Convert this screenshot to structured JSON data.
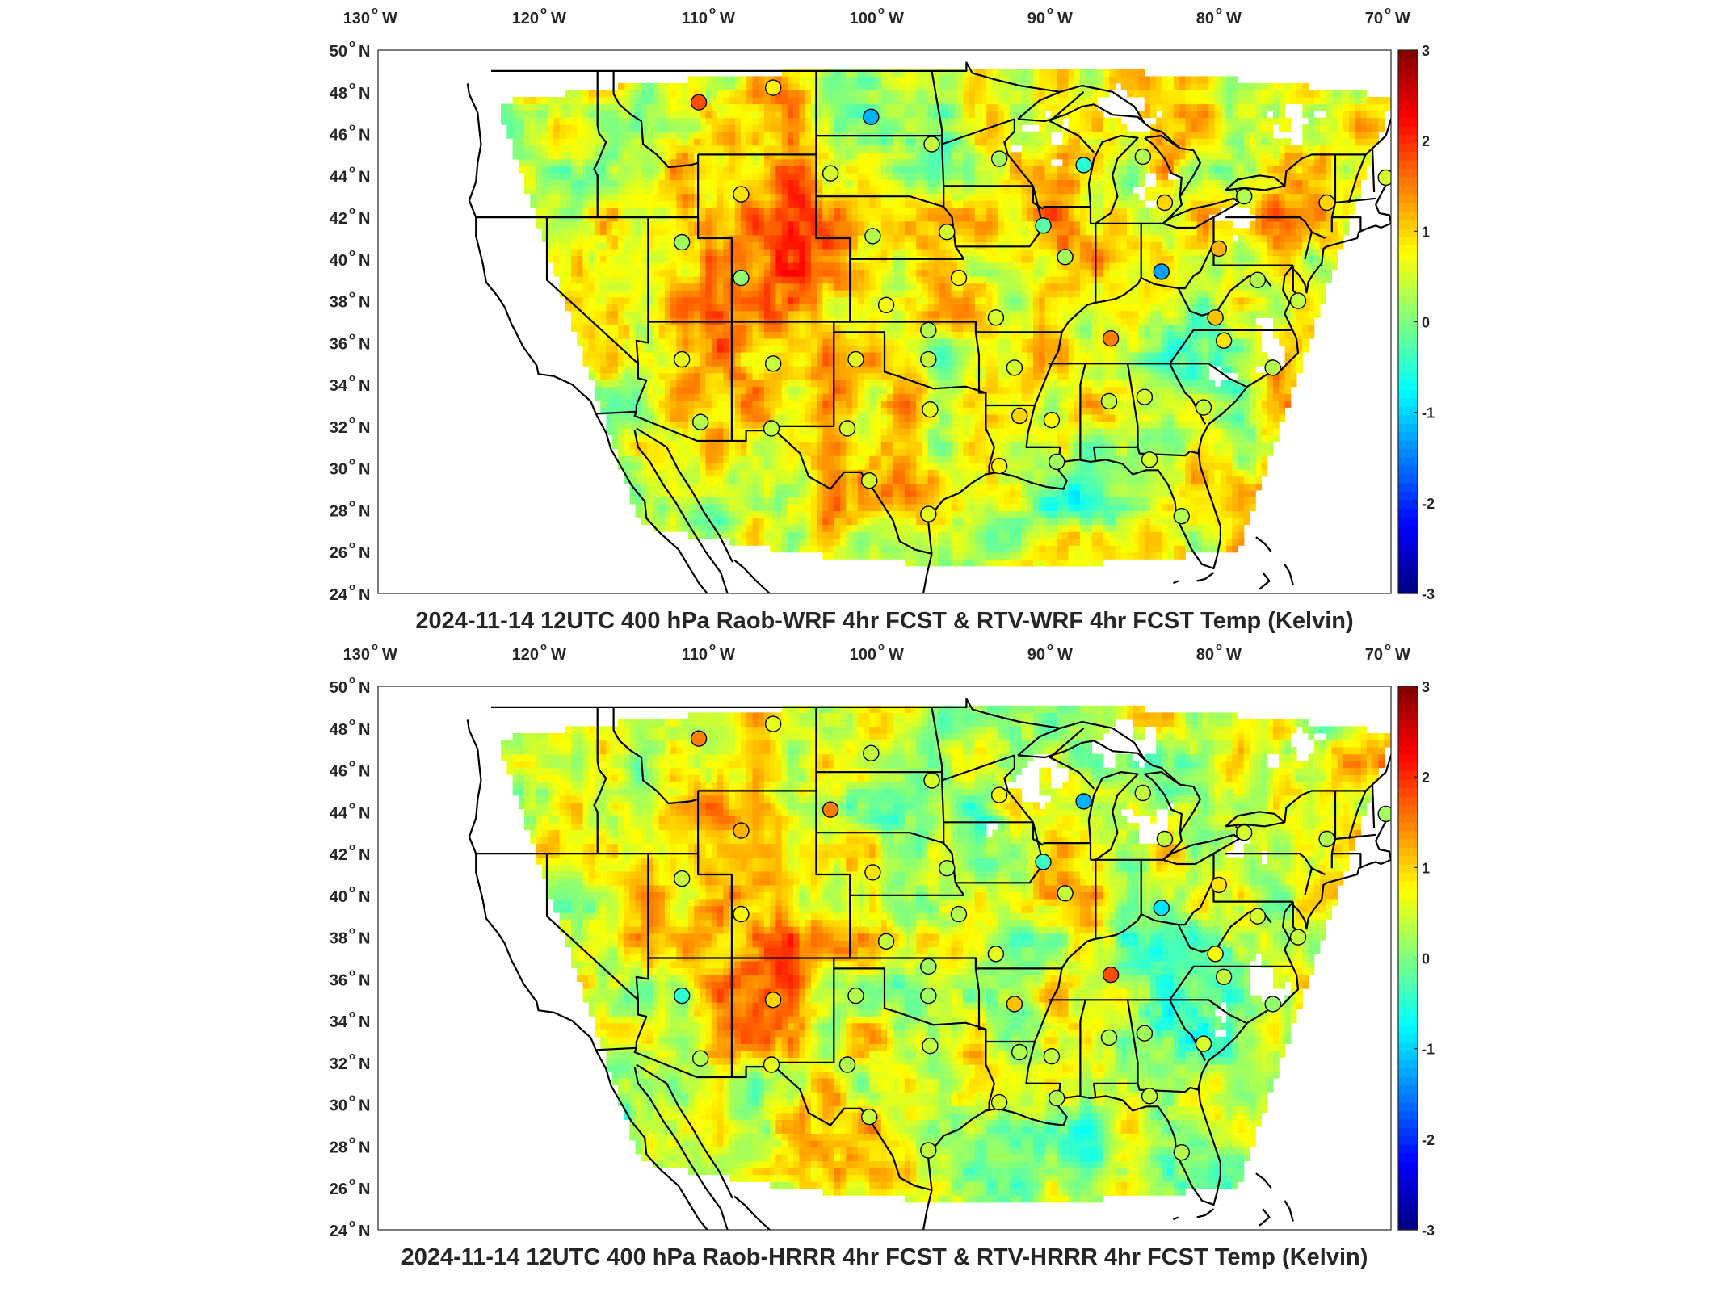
{
  "panels": [
    {
      "id": "wrf",
      "title": "2024-11-14 12UTC 400 hPa Raob-WRF 4hr FCST & RTV-WRF 4hr FCST Temp (Kelvin)",
      "field_bias": 0.65,
      "stations": [
        {
          "lon": -111.0,
          "lat": 47.5,
          "v": 1.8
        },
        {
          "lon": -106.6,
          "lat": 48.2,
          "v": 0.8
        },
        {
          "lon": -100.8,
          "lat": 46.8,
          "v": -1.2
        },
        {
          "lon": -97.2,
          "lat": 45.5,
          "v": 0.4
        },
        {
          "lon": -93.2,
          "lat": 44.8,
          "v": 0.2
        },
        {
          "lon": -88.2,
          "lat": 44.5,
          "v": -0.5
        },
        {
          "lon": -84.7,
          "lat": 44.9,
          "v": 0.3
        },
        {
          "lon": -83.4,
          "lat": 42.7,
          "v": 1.0
        },
        {
          "lon": -78.7,
          "lat": 43.0,
          "v": 0.3
        },
        {
          "lon": -73.8,
          "lat": 42.7,
          "v": 1.0
        },
        {
          "lon": -70.3,
          "lat": 43.9,
          "v": 0.5
        },
        {
          "lon": -108.5,
          "lat": 43.1,
          "v": 0.9
        },
        {
          "lon": -103.2,
          "lat": 44.1,
          "v": 0.5
        },
        {
          "lon": -112.0,
          "lat": 40.8,
          "v": 0.2
        },
        {
          "lon": -108.5,
          "lat": 39.1,
          "v": 0.1
        },
        {
          "lon": -100.7,
          "lat": 41.1,
          "v": 0.3
        },
        {
          "lon": -96.3,
          "lat": 41.3,
          "v": 0.5
        },
        {
          "lon": -90.6,
          "lat": 41.6,
          "v": -0.2
        },
        {
          "lon": -89.3,
          "lat": 40.1,
          "v": 0.2
        },
        {
          "lon": -95.6,
          "lat": 39.1,
          "v": 0.8
        },
        {
          "lon": -83.6,
          "lat": 39.4,
          "v": -1.3
        },
        {
          "lon": -80.2,
          "lat": 40.5,
          "v": 1.2
        },
        {
          "lon": -99.9,
          "lat": 37.8,
          "v": 0.7
        },
        {
          "lon": -97.4,
          "lat": 36.6,
          "v": 0.3
        },
        {
          "lon": -93.4,
          "lat": 37.2,
          "v": 0.5
        },
        {
          "lon": -86.6,
          "lat": 36.2,
          "v": 1.5
        },
        {
          "lon": -79.9,
          "lat": 36.1,
          "v": 0.9
        },
        {
          "lon": -77.9,
          "lat": 39.0,
          "v": 0.3
        },
        {
          "lon": -80.4,
          "lat": 37.2,
          "v": 1.1
        },
        {
          "lon": -75.5,
          "lat": 38.0,
          "v": 0.4
        },
        {
          "lon": -112.0,
          "lat": 35.2,
          "v": 0.6
        },
        {
          "lon": -106.6,
          "lat": 35.0,
          "v": 0.4
        },
        {
          "lon": -101.7,
          "lat": 35.2,
          "v": 0.6
        },
        {
          "lon": -97.4,
          "lat": 35.2,
          "v": 0.4
        },
        {
          "lon": -92.3,
          "lat": 34.8,
          "v": 0.5
        },
        {
          "lon": -77.0,
          "lat": 34.8,
          "v": 0.3
        },
        {
          "lon": -110.9,
          "lat": 32.2,
          "v": 0.3
        },
        {
          "lon": -106.7,
          "lat": 31.9,
          "v": 0.4
        },
        {
          "lon": -102.2,
          "lat": 31.9,
          "v": 0.5
        },
        {
          "lon": -97.3,
          "lat": 32.8,
          "v": 0.6
        },
        {
          "lon": -92.0,
          "lat": 32.5,
          "v": 1.0
        },
        {
          "lon": -90.1,
          "lat": 32.3,
          "v": 0.8
        },
        {
          "lon": -86.7,
          "lat": 33.2,
          "v": 0.4
        },
        {
          "lon": -84.6,
          "lat": 33.4,
          "v": 0.5
        },
        {
          "lon": -81.1,
          "lat": 32.9,
          "v": 0.4
        },
        {
          "lon": -100.9,
          "lat": 29.4,
          "v": 0.5
        },
        {
          "lon": -97.4,
          "lat": 27.8,
          "v": 0.6
        },
        {
          "lon": -93.2,
          "lat": 30.1,
          "v": 0.8
        },
        {
          "lon": -89.8,
          "lat": 30.3,
          "v": 0.2
        },
        {
          "lon": -84.3,
          "lat": 30.4,
          "v": 0.5
        },
        {
          "lon": -82.4,
          "lat": 27.7,
          "v": 0.3
        }
      ]
    },
    {
      "id": "hrrr",
      "title": "2024-11-14 12UTC 400 hPa Raob-HRRR 4hr FCST & RTV-HRRR 4hr FCST Temp (Kelvin)",
      "field_bias": 0.45,
      "stations": [
        {
          "lon": -111.0,
          "lat": 47.5,
          "v": 1.5
        },
        {
          "lon": -106.6,
          "lat": 48.2,
          "v": 0.6
        },
        {
          "lon": -100.8,
          "lat": 46.8,
          "v": 0.4
        },
        {
          "lon": -97.2,
          "lat": 45.5,
          "v": 0.5
        },
        {
          "lon": -93.2,
          "lat": 44.8,
          "v": 0.8
        },
        {
          "lon": -88.2,
          "lat": 44.5,
          "v": -1.2
        },
        {
          "lon": -84.7,
          "lat": 44.9,
          "v": 0.4
        },
        {
          "lon": -83.4,
          "lat": 42.7,
          "v": 0.4
        },
        {
          "lon": -78.7,
          "lat": 43.0,
          "v": 0.5
        },
        {
          "lon": -73.8,
          "lat": 42.7,
          "v": 0.3
        },
        {
          "lon": -70.3,
          "lat": 43.9,
          "v": 0.2
        },
        {
          "lon": -108.5,
          "lat": 43.1,
          "v": 1.2
        },
        {
          "lon": -103.2,
          "lat": 44.1,
          "v": 1.5
        },
        {
          "lon": -112.0,
          "lat": 40.8,
          "v": 0.4
        },
        {
          "lon": -108.5,
          "lat": 39.1,
          "v": 0.8
        },
        {
          "lon": -100.7,
          "lat": 41.1,
          "v": 0.9
        },
        {
          "lon": -96.3,
          "lat": 41.3,
          "v": 0.3
        },
        {
          "lon": -90.6,
          "lat": 41.6,
          "v": -0.4
        },
        {
          "lon": -89.3,
          "lat": 40.1,
          "v": 0.4
        },
        {
          "lon": -95.6,
          "lat": 39.1,
          "v": 0.3
        },
        {
          "lon": -83.6,
          "lat": 39.4,
          "v": -0.9
        },
        {
          "lon": -80.2,
          "lat": 40.5,
          "v": 0.9
        },
        {
          "lon": -99.9,
          "lat": 37.8,
          "v": 0.4
        },
        {
          "lon": -97.4,
          "lat": 36.6,
          "v": 0.2
        },
        {
          "lon": -93.4,
          "lat": 37.2,
          "v": 0.6
        },
        {
          "lon": -86.6,
          "lat": 36.2,
          "v": 1.8
        },
        {
          "lon": -79.9,
          "lat": 36.1,
          "v": 0.4
        },
        {
          "lon": -77.9,
          "lat": 39.0,
          "v": 0.5
        },
        {
          "lon": -80.4,
          "lat": 37.2,
          "v": 0.7
        },
        {
          "lon": -75.5,
          "lat": 38.0,
          "v": 0.4
        },
        {
          "lon": -112.0,
          "lat": 35.2,
          "v": -0.5
        },
        {
          "lon": -106.6,
          "lat": 35.0,
          "v": 1.0
        },
        {
          "lon": -101.7,
          "lat": 35.2,
          "v": 0.3
        },
        {
          "lon": -97.4,
          "lat": 35.2,
          "v": 0.2
        },
        {
          "lon": -92.3,
          "lat": 34.8,
          "v": 1.1
        },
        {
          "lon": -77.0,
          "lat": 34.8,
          "v": 0.1
        },
        {
          "lon": -110.9,
          "lat": 32.2,
          "v": 0.3
        },
        {
          "lon": -106.7,
          "lat": 31.9,
          "v": 0.6
        },
        {
          "lon": -102.2,
          "lat": 31.9,
          "v": 0.3
        },
        {
          "lon": -97.3,
          "lat": 32.8,
          "v": 0.4
        },
        {
          "lon": -92.0,
          "lat": 32.5,
          "v": 0.3
        },
        {
          "lon": -90.1,
          "lat": 32.3,
          "v": 0.4
        },
        {
          "lon": -86.7,
          "lat": 33.2,
          "v": 0.3
        },
        {
          "lon": -84.6,
          "lat": 33.4,
          "v": 0.2
        },
        {
          "lon": -81.1,
          "lat": 32.9,
          "v": 0.5
        },
        {
          "lon": -100.9,
          "lat": 29.4,
          "v": 0.4
        },
        {
          "lon": -97.4,
          "lat": 27.8,
          "v": 0.4
        },
        {
          "lon": -93.2,
          "lat": 30.1,
          "v": 0.5
        },
        {
          "lon": -89.8,
          "lat": 30.3,
          "v": 0.3
        },
        {
          "lon": -84.3,
          "lat": 30.4,
          "v": 0.4
        },
        {
          "lon": -82.4,
          "lat": 27.7,
          "v": 0.3
        }
      ]
    }
  ],
  "axes": {
    "lon_ticks": [
      -130,
      -120,
      -110,
      -100,
      -90,
      -80,
      -70
    ],
    "lon_labels": [
      "130",
      "120",
      "110",
      "100",
      "90",
      "80",
      "70"
    ],
    "lon_suffix": "W",
    "lat_ticks": [
      50,
      48,
      46,
      44,
      42,
      40,
      38,
      36,
      34,
      32,
      30,
      28,
      26,
      24
    ],
    "lat_labels": [
      "50",
      "48",
      "46",
      "44",
      "42",
      "40",
      "38",
      "36",
      "34",
      "32",
      "30",
      "28",
      "26",
      "24"
    ],
    "lat_suffix": "N",
    "degree_symbol": "o",
    "lon_range": [
      -130,
      -70
    ],
    "lat_range": [
      24,
      50
    ]
  },
  "colorbar": {
    "colormap": "jet",
    "range": [
      -3,
      3
    ],
    "ticks": [
      3,
      2,
      1,
      0,
      -1,
      -2,
      -3
    ],
    "tick_labels": [
      "3",
      "2",
      "1",
      "0",
      "-1",
      "-2",
      "-3"
    ]
  },
  "colors": {
    "background": "#ffffff",
    "coastline": "#000000",
    "border": "#000000",
    "text": "#262626"
  }
}
